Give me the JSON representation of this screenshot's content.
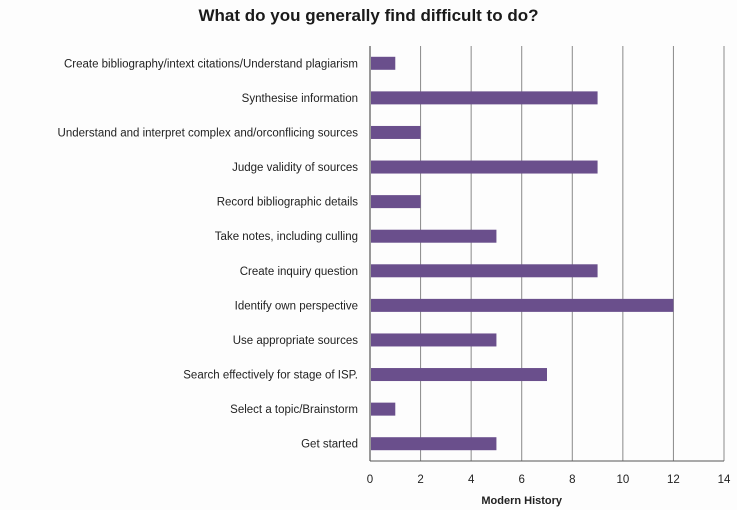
{
  "chart_data": {
    "type": "bar",
    "orientation": "horizontal",
    "title": "What do you generally find difficult to do?",
    "xlabel": "Modern History",
    "ylabel": "",
    "xlim": [
      0,
      14
    ],
    "x_ticks": [
      0,
      2,
      4,
      6,
      8,
      10,
      12,
      14
    ],
    "grid": "vertical",
    "bar_color": "#6a4f8c",
    "categories": [
      "Create bibliography/intext citations/Understand  plagiarism",
      "Synthesise information",
      "Understand and interpret complex and/orconflicing sources",
      "Judge validity of sources",
      "Record bibliographic details",
      "Take notes, including culling",
      "Create inquiry question",
      "Identify own perspective",
      "Use appropriate sources",
      "Search effectively for stage of ISP.",
      "Select a topic/Brainstorm",
      "Get started"
    ],
    "values": [
      1,
      9,
      2,
      9,
      2,
      5,
      9,
      12,
      5,
      7,
      1,
      5
    ]
  }
}
